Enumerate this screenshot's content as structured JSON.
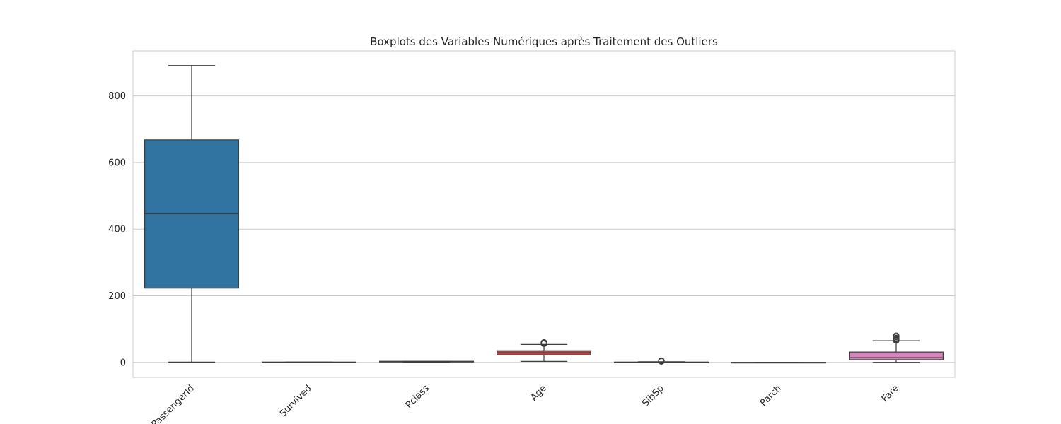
{
  "chart_data": {
    "type": "boxplot",
    "title": "Boxplots des Variables Numériques après Traitement des Outliers",
    "xlabel": "",
    "ylabel": "",
    "ylim": [
      -45,
      935
    ],
    "yticks": [
      0,
      200,
      400,
      600,
      800
    ],
    "ytick_labels": [
      "0",
      "200",
      "400",
      "600",
      "800"
    ],
    "grid": "horizontal",
    "categories": [
      "PassengerId",
      "Survived",
      "Pclass",
      "Age",
      "SibSp",
      "Parch",
      "Fare"
    ],
    "boxes": [
      {
        "name": "PassengerId",
        "color": "#3274a1",
        "whisker_low": 1,
        "q1": 223,
        "median": 446,
        "q3": 668,
        "whisker_high": 891,
        "outliers": []
      },
      {
        "name": "Survived",
        "color": "#e1812c",
        "whisker_low": 0,
        "q1": 0,
        "median": 0,
        "q3": 1,
        "whisker_high": 1,
        "outliers": []
      },
      {
        "name": "Pclass",
        "color": "#3a923a",
        "whisker_low": 1,
        "q1": 2,
        "median": 3,
        "q3": 3,
        "whisker_high": 3,
        "outliers": []
      },
      {
        "name": "Age",
        "color": "#c03d3e",
        "whisker_low": 3,
        "q1": 22,
        "median": 29,
        "q3": 35,
        "whisker_high": 54,
        "outliers": [
          56,
          57,
          58,
          59,
          60
        ]
      },
      {
        "name": "SibSp",
        "color": "#9372b2",
        "whisker_low": 0,
        "q1": 0,
        "median": 0,
        "q3": 1,
        "whisker_high": 2,
        "outliers": [
          3,
          4,
          5
        ]
      },
      {
        "name": "Parch",
        "color": "#845b53",
        "whisker_low": 0,
        "q1": 0,
        "median": 0,
        "q3": 0,
        "whisker_high": 0,
        "outliers": []
      },
      {
        "name": "Fare",
        "color": "#d684bd",
        "whisker_low": 0,
        "q1": 8,
        "median": 14,
        "q3": 31,
        "whisker_high": 65,
        "outliers": [
          66,
          68,
          70,
          73,
          77,
          80
        ]
      }
    ]
  }
}
